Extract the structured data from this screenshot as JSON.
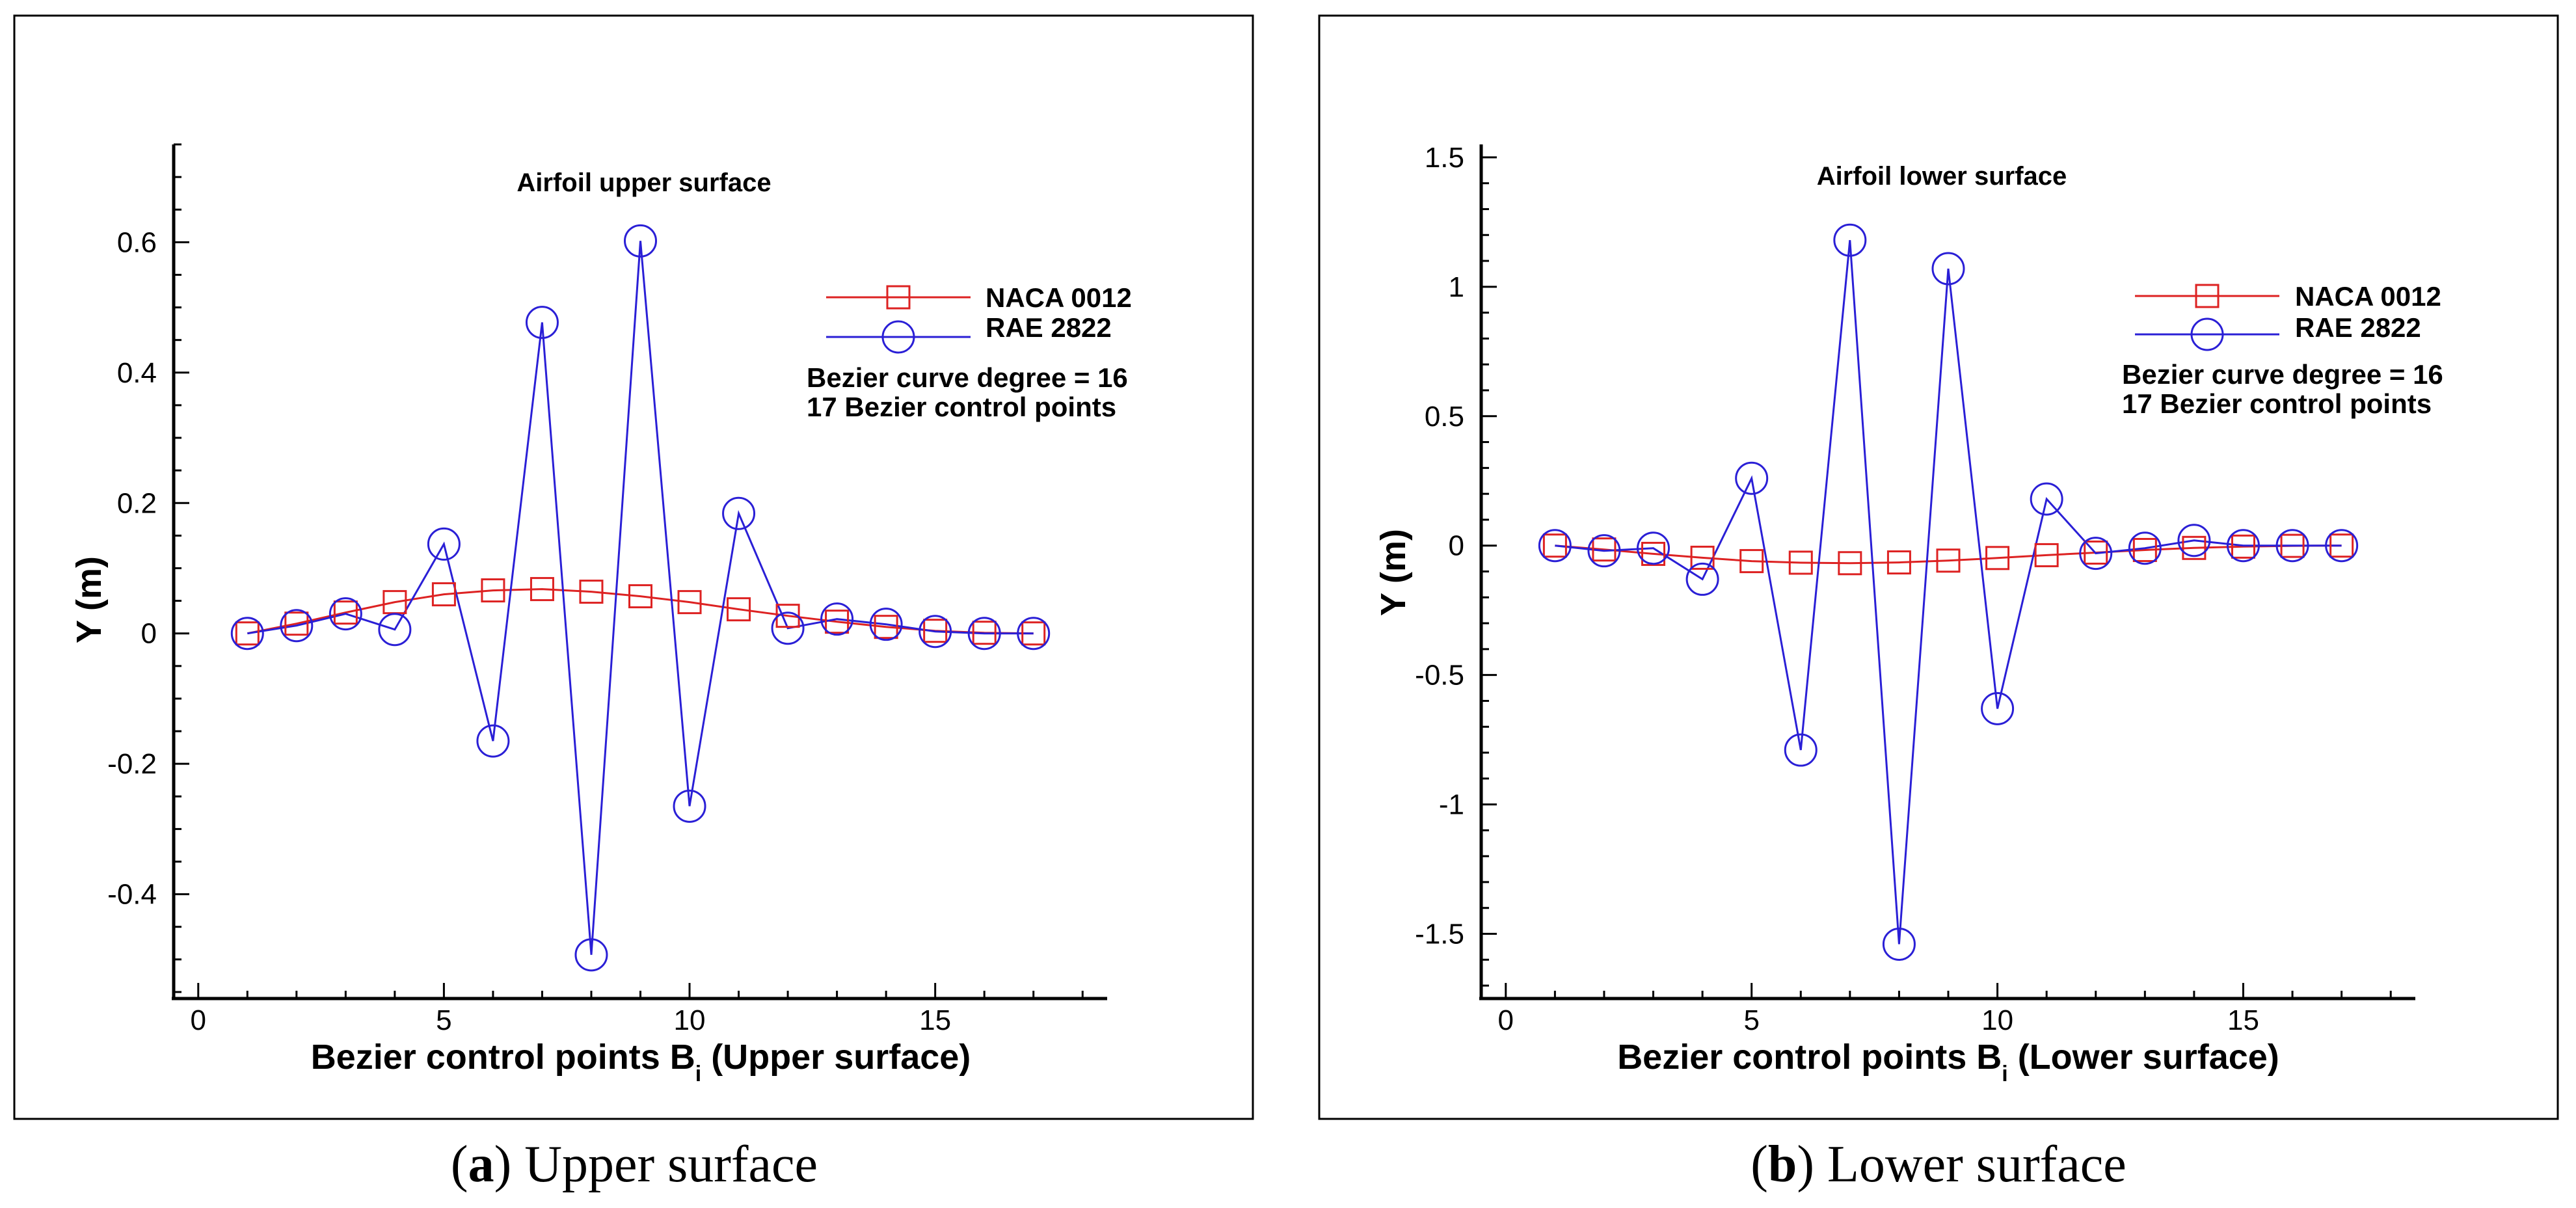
{
  "colors": {
    "naca": "#dd2222",
    "rae": "#2a1fd6"
  },
  "chart_data": [
    {
      "type": "line",
      "title": "Airfoil upper surface",
      "xlabel_main": "Bezier control points B",
      "xlabel_sub": "i",
      "xlabel_suffix": " (Upper surface)",
      "ylabel": "Y (m)",
      "xlim": [
        -0.5,
        18.5
      ],
      "ylim": [
        -0.56,
        0.75
      ],
      "x_ticks": [
        0,
        5,
        10,
        15
      ],
      "x_tick_labels": [
        "0",
        "5",
        "10",
        "15"
      ],
      "y_ticks": [
        -0.4,
        -0.2,
        0,
        0.2,
        0.4,
        0.6
      ],
      "y_tick_labels": [
        "-0.4",
        "-0.2",
        "0",
        "0.2",
        "0.4",
        "0.6"
      ],
      "y_minor_step": 0.05,
      "legend_position": "top-right",
      "annotations": [
        "Bezier curve degree = 16",
        "17 Bezier control points"
      ],
      "series": [
        {
          "name": "NACA 0012",
          "marker": "square",
          "x": [
            1,
            2,
            3,
            4,
            5,
            6,
            7,
            8,
            9,
            10,
            11,
            12,
            13,
            14,
            15,
            16,
            17
          ],
          "values": [
            0.0,
            0.015,
            0.032,
            0.048,
            0.06,
            0.066,
            0.068,
            0.064,
            0.057,
            0.048,
            0.037,
            0.027,
            0.018,
            0.01,
            0.004,
            0.001,
            0.0
          ]
        },
        {
          "name": "RAE 2822",
          "marker": "circle",
          "x": [
            1,
            2,
            3,
            4,
            5,
            6,
            7,
            8,
            9,
            10,
            11,
            12,
            13,
            14,
            15,
            16,
            17
          ],
          "values": [
            0.0,
            0.012,
            0.03,
            0.006,
            0.137,
            -0.165,
            0.477,
            -0.493,
            0.602,
            -0.265,
            0.184,
            0.008,
            0.022,
            0.014,
            0.003,
            0.0,
            0.0
          ]
        }
      ],
      "caption_letter": "a",
      "caption_text": "Upper surface"
    },
    {
      "type": "line",
      "title": "Airfoil lower surface",
      "xlabel_main": "Bezier control points B",
      "xlabel_sub": "i",
      "xlabel_suffix": " (Lower surface)",
      "ylabel": "Y (m)",
      "xlim": [
        -0.5,
        18.5
      ],
      "ylim": [
        -1.75,
        1.55
      ],
      "x_ticks": [
        0,
        5,
        10,
        15
      ],
      "x_tick_labels": [
        "0",
        "5",
        "10",
        "15"
      ],
      "y_ticks": [
        -1.5,
        -1,
        -0.5,
        0,
        0.5,
        1,
        1.5
      ],
      "y_tick_labels": [
        "-1.5",
        "-1",
        "-0.5",
        "0",
        "0.5",
        "1",
        "1.5"
      ],
      "y_minor_step": 0.1,
      "legend_position": "top-right",
      "annotations": [
        "Bezier curve degree = 16",
        "17 Bezier control points"
      ],
      "series": [
        {
          "name": "NACA 0012",
          "marker": "square",
          "x": [
            1,
            2,
            3,
            4,
            5,
            6,
            7,
            8,
            9,
            10,
            11,
            12,
            13,
            14,
            15,
            16,
            17
          ],
          "values": [
            0.0,
            -0.015,
            -0.032,
            -0.047,
            -0.06,
            -0.066,
            -0.068,
            -0.065,
            -0.058,
            -0.048,
            -0.037,
            -0.027,
            -0.017,
            -0.009,
            -0.004,
            -0.001,
            0.0
          ]
        },
        {
          "name": "RAE 2822",
          "marker": "circle",
          "x": [
            1,
            2,
            3,
            4,
            5,
            6,
            7,
            8,
            9,
            10,
            11,
            12,
            13,
            14,
            15,
            16,
            17
          ],
          "values": [
            0.0,
            -0.02,
            -0.01,
            -0.13,
            0.26,
            -0.79,
            1.18,
            -1.54,
            1.07,
            -0.63,
            0.18,
            -0.03,
            -0.01,
            0.02,
            0.0,
            0.0,
            0.0
          ]
        }
      ],
      "caption_letter": "b",
      "caption_text": "Lower surface"
    }
  ]
}
